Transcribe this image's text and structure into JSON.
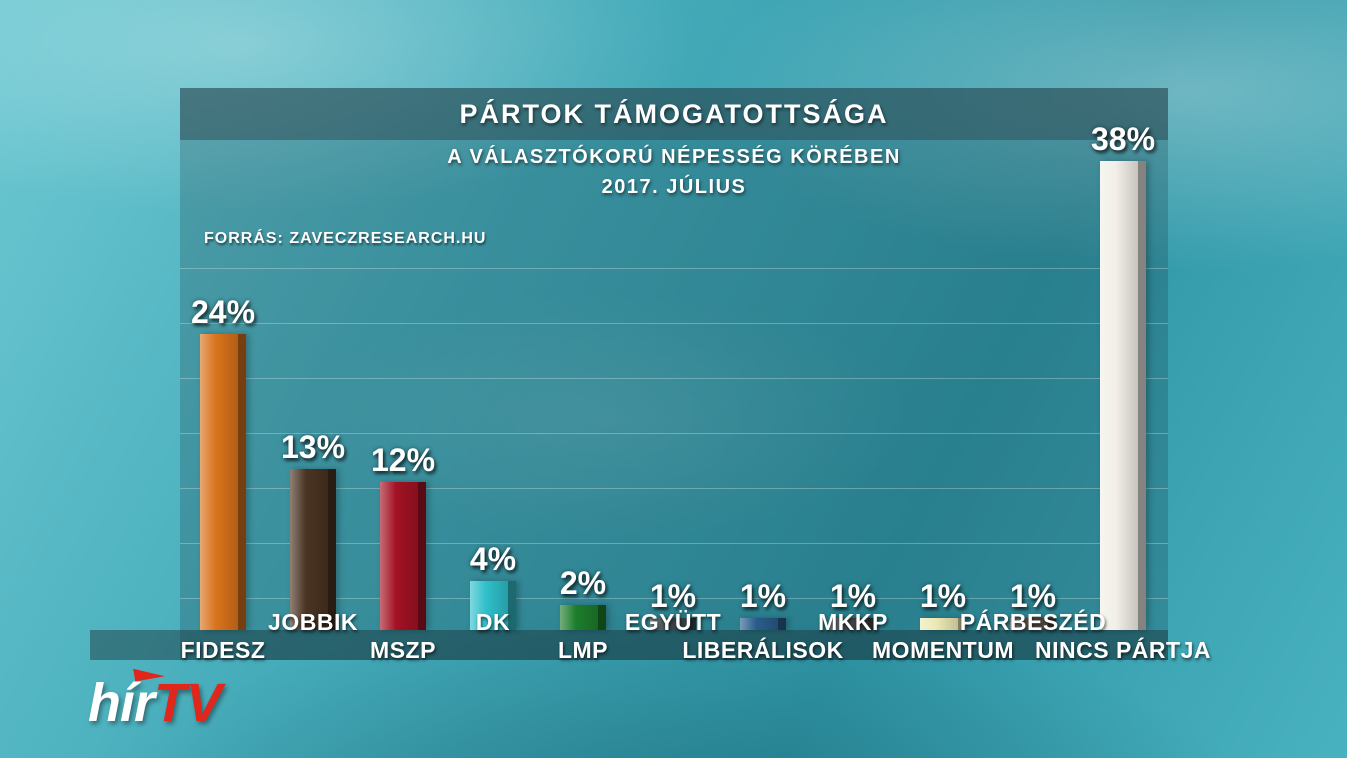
{
  "logo": {
    "white_text": "hír",
    "red_text": "TV",
    "accent_color": "#e1261c"
  },
  "chart_data": {
    "type": "bar",
    "title": "PÁRTOK TÁMOGATOTTSÁGA",
    "subtitle": "A VÁLASZTÓKORÚ NÉPESSÉG KÖRÉBEN",
    "period": "2017. JÚLIUS",
    "source": "FORRÁS: ZAVECZRESEARCH.HU",
    "categories": [
      "FIDESZ",
      "JOBBIK",
      "MSZP",
      "DK",
      "LMP",
      "EGYÜTT",
      "LIBERÁLISOK",
      "MKKP",
      "MOMENTUM",
      "PÁRBESZÉD",
      "NINCS PÁRTJA"
    ],
    "values": [
      24,
      13,
      12,
      4,
      2,
      1,
      1,
      1,
      1,
      1,
      38
    ],
    "value_labels": [
      "24%",
      "13%",
      "12%",
      "4%",
      "2%",
      "1%",
      "1%",
      "1%",
      "1%",
      "1%",
      "38%"
    ],
    "bar_colors": [
      "#d9731c",
      "#4a3322",
      "#a31224",
      "#2fc0cb",
      "#1d7d2c",
      "#3c4a4e",
      "#2a5d8c",
      "#44484a",
      "#ece9b4",
      "#5a5248",
      "#f1efe7"
    ],
    "ylim": [
      0,
      40
    ],
    "grid": true,
    "xlabel": "",
    "ylabel": ""
  }
}
